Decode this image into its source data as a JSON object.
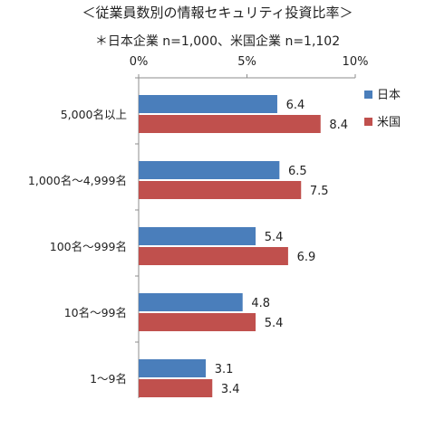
{
  "chart_data": {
    "type": "bar",
    "orientation": "horizontal",
    "title": "＜従業員数別の情報セキュリティ投資比率＞",
    "subtitle": "＊日本企業 n=1,000、米国企業 n=1,102",
    "categories": [
      "5,000名以上",
      "1,000名～4,999名",
      "100名～999名",
      "10名～99名",
      "1～9名"
    ],
    "series": [
      {
        "name": "日本",
        "color": "#4a7ebb",
        "values": [
          6.4,
          6.5,
          5.4,
          4.8,
          3.1
        ],
        "labels": [
          "6.4",
          "6.5",
          "5.4",
          "4.8",
          "3.1"
        ]
      },
      {
        "name": "米国",
        "color": "#c0504d",
        "values": [
          8.4,
          7.5,
          6.9,
          5.4,
          3.4
        ],
        "labels": [
          "8.4",
          "7.5",
          "6.9",
          "5.4",
          "3.4"
        ]
      }
    ],
    "xlim": [
      0,
      10
    ],
    "xticks": [
      0,
      5,
      10
    ],
    "xtick_labels": [
      "0%",
      "5%",
      "10%"
    ],
    "axis_position": "top",
    "grid": false,
    "legend_position": "top-right"
  }
}
